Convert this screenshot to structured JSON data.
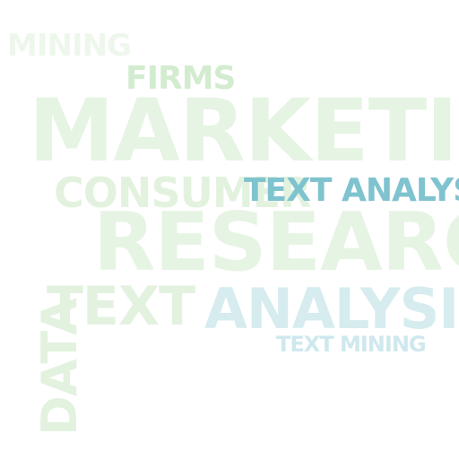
{
  "words": [
    {
      "text": "MINING",
      "color": "#eef7ec"
    },
    {
      "text": "FIRMS",
      "color": "#d3ecd0"
    },
    {
      "text": "MARKETING",
      "color": "#e6f4e3"
    },
    {
      "text": "CONSUMER",
      "color": "#e2f2df"
    },
    {
      "text": "TEXT ANALYSIS",
      "color": "#7fc3cf"
    },
    {
      "text": "RESEARCH",
      "color": "#e6f4e3"
    },
    {
      "text": "TEXT",
      "color": "#e2f2df"
    },
    {
      "text": "ANALYSIS",
      "color": "#d6ecef"
    },
    {
      "text": "TEXT MINING",
      "color": "#cfe8ee"
    },
    {
      "text": "DATA",
      "color": "#e2f2df"
    }
  ]
}
